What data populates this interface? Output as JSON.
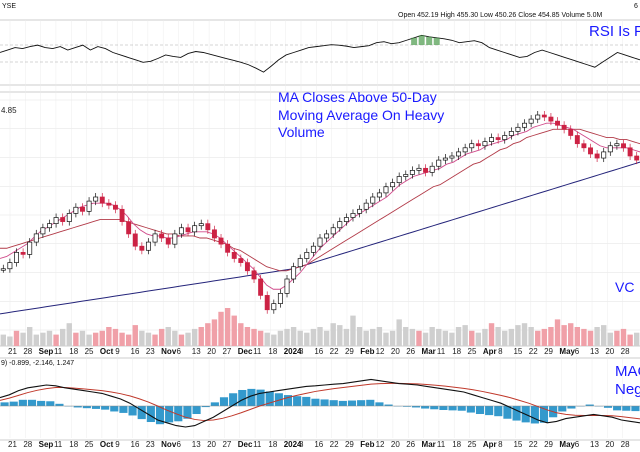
{
  "header": {
    "exchange": "YSE",
    "ohlc": "Open 452.19  High 455.30  Low 450.26  Close 454.85  Volume 5.0M",
    "corner": "6"
  },
  "price_label": "4.85",
  "macd_label": "9) -0.899, -2.146, 1.247",
  "annotations": {
    "rsi": "RSI Is F",
    "ma_line1": "MA Closes Above 50-Day",
    "ma_line2": "Moving Average On Heavy",
    "ma_line3": "Volume",
    "volume": "VC",
    "macd_line1": "MAC",
    "macd_line2": "Neg"
  },
  "colors": {
    "up": "#111111",
    "down": "#cc2244",
    "ma20": "#2e8b2e",
    "ma50": "#d04a8a",
    "ma100": "#b23a48",
    "ma200": "#24247a",
    "volume": "#cfcfcf",
    "volume_down": "#f0a0a8",
    "macd": "#111111",
    "signal": "#c0392b",
    "hist": "#3399cc",
    "annotation": "#1a1aff"
  },
  "chart_data": {
    "type": "candlestick",
    "x_ticks": [
      {
        "label": "21",
        "bold": false
      },
      {
        "label": "28",
        "bold": false
      },
      {
        "label": "Sep",
        "bold": true
      },
      {
        "label": "11",
        "bold": false
      },
      {
        "label": "18",
        "bold": false
      },
      {
        "label": "25",
        "bold": false
      },
      {
        "label": "Oct",
        "bold": true
      },
      {
        "label": "9",
        "bold": false
      },
      {
        "label": "16",
        "bold": false
      },
      {
        "label": "23",
        "bold": false
      },
      {
        "label": "Nov",
        "bold": true
      },
      {
        "label": "6",
        "bold": false
      },
      {
        "label": "13",
        "bold": false
      },
      {
        "label": "20",
        "bold": false
      },
      {
        "label": "27",
        "bold": false
      },
      {
        "label": "Dec",
        "bold": true
      },
      {
        "label": "11",
        "bold": false
      },
      {
        "label": "18",
        "bold": false
      },
      {
        "label": "2024",
        "bold": true
      },
      {
        "label": "8",
        "bold": false
      },
      {
        "label": "16",
        "bold": false
      },
      {
        "label": "22",
        "bold": false
      },
      {
        "label": "29",
        "bold": false
      },
      {
        "label": "Feb",
        "bold": true
      },
      {
        "label": "12",
        "bold": false
      },
      {
        "label": "20",
        "bold": false
      },
      {
        "label": "26",
        "bold": false
      },
      {
        "label": "Mar",
        "bold": true
      },
      {
        "label": "11",
        "bold": false
      },
      {
        "label": "18",
        "bold": false
      },
      {
        "label": "25",
        "bold": false
      },
      {
        "label": "Apr",
        "bold": true
      },
      {
        "label": "8",
        "bold": false
      },
      {
        "label": "15",
        "bold": false
      },
      {
        "label": "22",
        "bold": false
      },
      {
        "label": "29",
        "bold": false
      },
      {
        "label": "May",
        "bold": true
      },
      {
        "label": "6",
        "bold": false
      },
      {
        "label": "13",
        "bold": false
      },
      {
        "label": "20",
        "bold": false
      },
      {
        "label": "28",
        "bold": false
      }
    ],
    "close_series": [
      0.25,
      0.28,
      0.33,
      0.32,
      0.38,
      0.42,
      0.45,
      0.47,
      0.5,
      0.48,
      0.52,
      0.55,
      0.53,
      0.58,
      0.6,
      0.57,
      0.56,
      0.54,
      0.48,
      0.42,
      0.36,
      0.34,
      0.38,
      0.42,
      0.4,
      0.37,
      0.42,
      0.45,
      0.43,
      0.46,
      0.47,
      0.44,
      0.4,
      0.37,
      0.33,
      0.3,
      0.28,
      0.24,
      0.2,
      0.12,
      0.05,
      0.08,
      0.13,
      0.2,
      0.26,
      0.3,
      0.33,
      0.36,
      0.4,
      0.42,
      0.45,
      0.48,
      0.5,
      0.52,
      0.54,
      0.57,
      0.6,
      0.62,
      0.65,
      0.67,
      0.7,
      0.71,
      0.73,
      0.74,
      0.72,
      0.75,
      0.78,
      0.79,
      0.8,
      0.82,
      0.84,
      0.86,
      0.85,
      0.87,
      0.89,
      0.88,
      0.9,
      0.92,
      0.94,
      0.96,
      0.98,
      1.0,
      0.99,
      0.97,
      0.95,
      0.93,
      0.9,
      0.86,
      0.84,
      0.81,
      0.79,
      0.82,
      0.85,
      0.86,
      0.84,
      0.8,
      0.78
    ],
    "ma20_series": [
      0.3,
      0.31,
      0.33,
      0.35,
      0.37,
      0.4,
      0.43,
      0.45,
      0.47,
      0.49,
      0.51,
      0.53,
      0.55,
      0.56,
      0.57,
      0.57,
      0.57,
      0.56,
      0.54,
      0.51,
      0.47,
      0.44,
      0.42,
      0.41,
      0.41,
      0.4,
      0.4,
      0.41,
      0.42,
      0.43,
      0.43,
      0.43,
      0.42,
      0.4,
      0.37,
      0.34,
      0.31,
      0.28,
      0.25,
      0.21,
      0.17,
      0.15,
      0.15,
      0.17,
      0.2,
      0.23,
      0.27,
      0.31,
      0.35,
      0.38,
      0.41,
      0.44,
      0.47,
      0.5,
      0.52,
      0.54,
      0.56,
      0.58,
      0.6,
      0.63,
      0.66,
      0.68,
      0.7,
      0.71,
      0.72,
      0.73,
      0.74,
      0.76,
      0.77,
      0.79,
      0.81,
      0.82,
      0.83,
      0.85,
      0.86,
      0.87,
      0.88,
      0.9,
      0.91,
      0.92,
      0.94,
      0.95,
      0.96,
      0.96,
      0.95,
      0.94,
      0.93,
      0.91,
      0.89,
      0.87,
      0.85,
      0.84,
      0.84,
      0.84,
      0.84,
      0.83,
      0.82
    ],
    "ma50_series": [
      0.35,
      0.35,
      0.36,
      0.37,
      0.38,
      0.39,
      0.4,
      0.41,
      0.42,
      0.43,
      0.44,
      0.45,
      0.46,
      0.47,
      0.48,
      0.49,
      0.49,
      0.49,
      0.49,
      0.48,
      0.47,
      0.46,
      0.45,
      0.44,
      0.43,
      0.42,
      0.42,
      0.41,
      0.41,
      0.41,
      0.4,
      0.4,
      0.39,
      0.38,
      0.37,
      0.35,
      0.34,
      0.32,
      0.3,
      0.28,
      0.26,
      0.25,
      0.24,
      0.24,
      0.25,
      0.26,
      0.27,
      0.29,
      0.31,
      0.33,
      0.35,
      0.37,
      0.39,
      0.41,
      0.43,
      0.45,
      0.47,
      0.49,
      0.51,
      0.53,
      0.55,
      0.57,
      0.59,
      0.61,
      0.63,
      0.65,
      0.66,
      0.68,
      0.7,
      0.72,
      0.74,
      0.76,
      0.77,
      0.79,
      0.81,
      0.83,
      0.84,
      0.86,
      0.87,
      0.89,
      0.9,
      0.91,
      0.92,
      0.93,
      0.93,
      0.93,
      0.93,
      0.93,
      0.92,
      0.91,
      0.9,
      0.89,
      0.89,
      0.88,
      0.88,
      0.87,
      0.86
    ],
    "ma200_series": [
      0.03,
      0.035,
      0.04,
      0.045,
      0.05,
      0.055,
      0.06,
      0.065,
      0.07,
      0.075,
      0.08,
      0.085,
      0.09,
      0.095,
      0.1,
      0.105,
      0.11,
      0.115,
      0.12,
      0.125,
      0.13,
      0.135,
      0.14,
      0.145,
      0.15,
      0.155,
      0.16,
      0.165,
      0.17,
      0.175,
      0.18,
      0.185,
      0.19,
      0.195,
      0.2,
      0.205,
      0.21,
      0.215,
      0.22,
      0.225,
      0.23,
      0.235,
      0.24,
      0.245,
      0.25,
      0.26,
      0.27,
      0.28,
      0.29,
      0.3,
      0.31,
      0.32,
      0.33,
      0.34,
      0.35,
      0.36,
      0.37,
      0.38,
      0.39,
      0.4,
      0.41,
      0.42,
      0.43,
      0.44,
      0.45,
      0.46,
      0.47,
      0.48,
      0.49,
      0.5,
      0.51,
      0.52,
      0.53,
      0.54,
      0.55,
      0.56,
      0.57,
      0.58,
      0.59,
      0.6,
      0.61,
      0.62,
      0.63,
      0.64,
      0.65,
      0.66,
      0.67,
      0.68,
      0.69,
      0.7,
      0.71,
      0.72,
      0.73,
      0.74,
      0.75,
      0.76,
      0.77
    ],
    "rsi_series": [
      0.5,
      0.55,
      0.6,
      0.58,
      0.62,
      0.65,
      0.6,
      0.58,
      0.62,
      0.55,
      0.6,
      0.65,
      0.55,
      0.62,
      0.58,
      0.5,
      0.45,
      0.4,
      0.35,
      0.3,
      0.32,
      0.38,
      0.45,
      0.42,
      0.4,
      0.48,
      0.52,
      0.5,
      0.46,
      0.42,
      0.38,
      0.34,
      0.3,
      0.25,
      0.18,
      0.1,
      0.22,
      0.35,
      0.45,
      0.5,
      0.55,
      0.6,
      0.62,
      0.64,
      0.66,
      0.65,
      0.63,
      0.6,
      0.62,
      0.64,
      0.7,
      0.72,
      0.68,
      0.7,
      0.75,
      0.8,
      0.85,
      0.82,
      0.8,
      0.78,
      0.75,
      0.7,
      0.72,
      0.74,
      0.7,
      0.6,
      0.55,
      0.5,
      0.45,
      0.4,
      0.42,
      0.5,
      0.55,
      0.5,
      0.45,
      0.4,
      0.35,
      0.3,
      0.25,
      0.2,
      0.3,
      0.4,
      0.5,
      0.45,
      0.4,
      0.35
    ],
    "volume_series": [
      0.3,
      0.25,
      0.4,
      0.35,
      0.5,
      0.3,
      0.35,
      0.4,
      0.3,
      0.45,
      0.6,
      0.35,
      0.4,
      0.3,
      0.35,
      0.4,
      0.5,
      0.45,
      0.35,
      0.3,
      0.55,
      0.4,
      0.35,
      0.3,
      0.45,
      0.5,
      0.4,
      0.3,
      0.35,
      0.45,
      0.5,
      0.6,
      0.7,
      0.9,
      1.0,
      0.8,
      0.6,
      0.5,
      0.45,
      0.4,
      0.35,
      0.3,
      0.4,
      0.45,
      0.5,
      0.4,
      0.35,
      0.45,
      0.5,
      0.4,
      0.6,
      0.55,
      0.45,
      0.8,
      0.5,
      0.4,
      0.45,
      0.5,
      0.35,
      0.4,
      0.7,
      0.5,
      0.45,
      0.4,
      0.35,
      0.5,
      0.45,
      0.4,
      0.35,
      0.5,
      0.55,
      0.4,
      0.35,
      0.45,
      0.6,
      0.5,
      0.4,
      0.45,
      0.55,
      0.6,
      0.5,
      0.4,
      0.45,
      0.5,
      0.7,
      0.55,
      0.6,
      0.5,
      0.45,
      0.4,
      0.5,
      0.55,
      0.35,
      0.4,
      0.45,
      0.3,
      0.35
    ],
    "macd_series": [
      0.3,
      0.4,
      0.55,
      0.65,
      0.7,
      0.75,
      0.72,
      0.65,
      0.6,
      0.55,
      0.5,
      0.45,
      0.35,
      0.25,
      0.1,
      -0.1,
      -0.3,
      -0.5,
      -0.6,
      -0.7,
      -0.75,
      -0.7,
      -0.55,
      -0.4,
      -0.2,
      0.0,
      0.2,
      0.35,
      0.45,
      0.5,
      0.55,
      0.6,
      0.65,
      0.7,
      0.72,
      0.75,
      0.78,
      0.8,
      0.85,
      0.9,
      0.95,
      0.9,
      0.85,
      0.8,
      0.78,
      0.75,
      0.7,
      0.65,
      0.6,
      0.55,
      0.5,
      0.4,
      0.3,
      0.2,
      0.1,
      -0.05,
      -0.2,
      -0.35,
      -0.5,
      -0.6,
      -0.55,
      -0.45,
      -0.4,
      -0.35,
      -0.3,
      -0.35,
      -0.4,
      -0.5,
      -0.55,
      -0.6
    ],
    "signal_series": [
      0.2,
      0.28,
      0.38,
      0.48,
      0.56,
      0.62,
      0.66,
      0.66,
      0.64,
      0.61,
      0.58,
      0.55,
      0.5,
      0.44,
      0.36,
      0.26,
      0.14,
      0.0,
      -0.15,
      -0.28,
      -0.4,
      -0.48,
      -0.52,
      -0.5,
      -0.44,
      -0.35,
      -0.24,
      -0.12,
      0.0,
      0.1,
      0.2,
      0.3,
      0.38,
      0.45,
      0.52,
      0.57,
      0.62,
      0.66,
      0.7,
      0.74,
      0.78,
      0.8,
      0.81,
      0.81,
      0.8,
      0.79,
      0.77,
      0.74,
      0.71,
      0.67,
      0.63,
      0.58,
      0.52,
      0.45,
      0.38,
      0.3,
      0.2,
      0.1,
      -0.02,
      -0.14,
      -0.24,
      -0.3,
      -0.33,
      -0.34,
      -0.34,
      -0.34,
      -0.35,
      -0.38,
      -0.42,
      -0.46
    ]
  }
}
